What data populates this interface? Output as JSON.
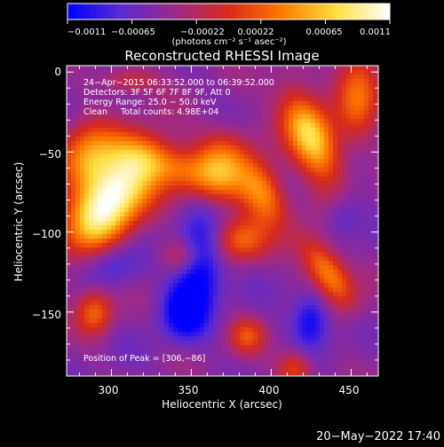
{
  "chart_data": {
    "type": "heatmap",
    "title": "Reconstructed RHESSI Image",
    "xlabel": "Heliocentric X (arcsec)",
    "ylabel": "Heliocentric Y (arcsec)",
    "xlim": [
      272,
      467
    ],
    "ylim": [
      -190,
      4
    ],
    "x_ticks": [
      "300",
      "350",
      "400",
      "450"
    ],
    "y_ticks": [
      "0",
      "−50",
      "−100",
      "−150"
    ],
    "colorbar": {
      "range": [
        -0.0011,
        0.0011
      ],
      "tick_labels": [
        "−0.0011",
        "−0.00065",
        "−0.00022",
        "0.00022",
        "0.00065",
        "0.0011"
      ],
      "unit_label": "(photons cm⁻² s⁻¹ asec⁻²)",
      "colors": [
        "#0000ff",
        "#5a2bd0",
        "#9b2a8a",
        "#d82a1a",
        "#ff7a00",
        "#ffdf40",
        "#ffffff"
      ]
    },
    "info_lines": [
      "24−Apr−2015 06:33:52.000 to 06:39:52.000",
      "Detectors: 3F 5F 6F 7F 8F 9F, Att 0",
      "Energy Range: 25.0 − 50.0 keV",
      "Clean     Total counts: 4.98E+04"
    ],
    "peak_text": "Position of Peak = [306,−86]",
    "peak": [
      306,
      -86
    ],
    "blobs": [
      {
        "x": 300,
        "y": -80,
        "intensity": 1.0,
        "sx": 14,
        "sy": 26,
        "rot": -35
      },
      {
        "x": 285,
        "y": -55,
        "intensity": 0.55,
        "sx": 12,
        "sy": 14,
        "rot": 0
      },
      {
        "x": 340,
        "y": -60,
        "intensity": 0.45,
        "sx": 30,
        "sy": 10,
        "rot": -20
      },
      {
        "x": 370,
        "y": -55,
        "intensity": 0.45,
        "sx": 12,
        "sy": 14,
        "rot": 0
      },
      {
        "x": 395,
        "y": -75,
        "intensity": 0.55,
        "sx": 9,
        "sy": 16,
        "rot": 25
      },
      {
        "x": 380,
        "y": -105,
        "intensity": 0.45,
        "sx": 12,
        "sy": 10,
        "rot": 0
      },
      {
        "x": 425,
        "y": -40,
        "intensity": 0.8,
        "sx": 10,
        "sy": 22,
        "rot": 25
      },
      {
        "x": 455,
        "y": -10,
        "intensity": 0.5,
        "sx": 10,
        "sy": 20,
        "rot": 0
      },
      {
        "x": 435,
        "y": -125,
        "intensity": 0.6,
        "sx": 8,
        "sy": 18,
        "rot": 35
      },
      {
        "x": 345,
        "y": -115,
        "intensity": 0.35,
        "sx": 10,
        "sy": 8,
        "rot": 0
      },
      {
        "x": 290,
        "y": -150,
        "intensity": 0.45,
        "sx": 8,
        "sy": 10,
        "rot": 0
      },
      {
        "x": 385,
        "y": -165,
        "intensity": 0.35,
        "sx": 8,
        "sy": 8,
        "rot": 0
      },
      {
        "x": 415,
        "y": -185,
        "intensity": 0.4,
        "sx": 8,
        "sy": 8,
        "rot": 0
      },
      {
        "x": 310,
        "y": -5,
        "intensity": 0.3,
        "sx": 12,
        "sy": 6,
        "rot": 0
      },
      {
        "x": 345,
        "y": -150,
        "intensity": -0.45,
        "sx": 10,
        "sy": 12,
        "rot": 0
      },
      {
        "x": 355,
        "y": -120,
        "intensity": -0.55,
        "sx": 10,
        "sy": 18,
        "rot": 0
      },
      {
        "x": 425,
        "y": -155,
        "intensity": -0.4,
        "sx": 8,
        "sy": 12,
        "rot": 0
      },
      {
        "x": 300,
        "y": -120,
        "intensity": -0.25,
        "sx": 12,
        "sy": 10,
        "rot": 0
      },
      {
        "x": 445,
        "y": -90,
        "intensity": -0.2,
        "sx": 8,
        "sy": 10,
        "rot": 0
      }
    ]
  },
  "footer": {
    "date": "20−May−2022 17:40"
  }
}
